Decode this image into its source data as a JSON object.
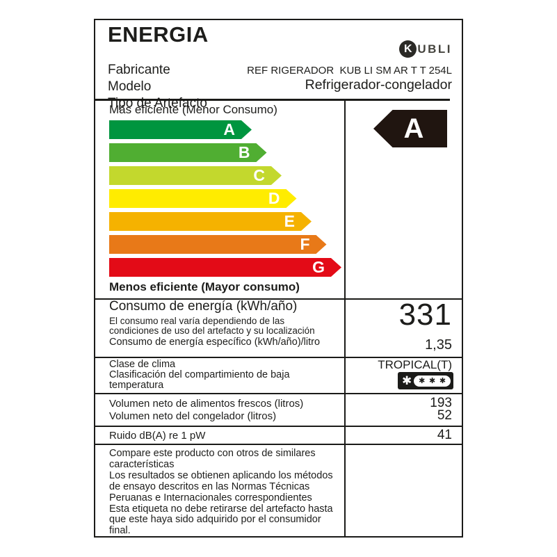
{
  "header": {
    "title": "ENERGIA",
    "fabricante_label": "Fabricante",
    "modelo_label": "Modelo",
    "tipo_label": "Tipo de Artefacto",
    "modelo_value": "REF RIGERADOR  KUB LI SM AR T T 254L",
    "tipo_value": "Refrigerador-congelador",
    "brand": {
      "circle_letter": "K",
      "rest": "UBLI"
    }
  },
  "scale": {
    "more_efficient": "Más eficiente  (Menor Consumo)",
    "less_efficient": "Menos eficiente (Mayor consumo)",
    "grades": [
      {
        "letter": "A",
        "color": "#00953F"
      },
      {
        "letter": "B",
        "color": "#50AE32"
      },
      {
        "letter": "C",
        "color": "#C3D82D"
      },
      {
        "letter": "D",
        "color": "#FFEC00"
      },
      {
        "letter": "E",
        "color": "#F5B200"
      },
      {
        "letter": "F",
        "color": "#E87918"
      },
      {
        "letter": "G",
        "color": "#E30B17"
      }
    ],
    "rating": {
      "letter": "A",
      "color": "#201510"
    }
  },
  "consumption": {
    "title": "Consumo de energía (kWh/año)",
    "note_line1": "El consumo real varía dependiendo de las",
    "note_line2": "condiciones de uso del artefacto y su localización",
    "specific_label": "Consumo de energía específico (kWh/año)/litro",
    "annual_value": "331",
    "specific_value": "1,35"
  },
  "climate": {
    "line1": "Clase de clima",
    "line2": "Clasificación del compartimiento de baja",
    "line3": "temperatura",
    "value": "TROPICAL(T)",
    "star_main": "✱",
    "stars_inner": [
      "✱",
      "✱",
      "✱"
    ]
  },
  "volumes": {
    "fresh": {
      "label": "Volumen neto de alimentos frescos (litros)",
      "value": "193"
    },
    "freezer": {
      "label": "Volumen neto del congelador (litros)",
      "value": "52"
    }
  },
  "noise": {
    "label": "Ruido dB(A) re 1 pW",
    "value": "41"
  },
  "footer_lines": [
    "Compare este producto con otros de similares",
    "características",
    "Los resultados se obtienen aplicando los métodos",
    "de ensayo descritos en las Normas Técnicas",
    "Peruanas e Internacionales correspondientes",
    "Esta etiqueta no debe retirarse del artefacto hasta",
    "que este haya sido adquirido por el consumidor",
    "final."
  ]
}
